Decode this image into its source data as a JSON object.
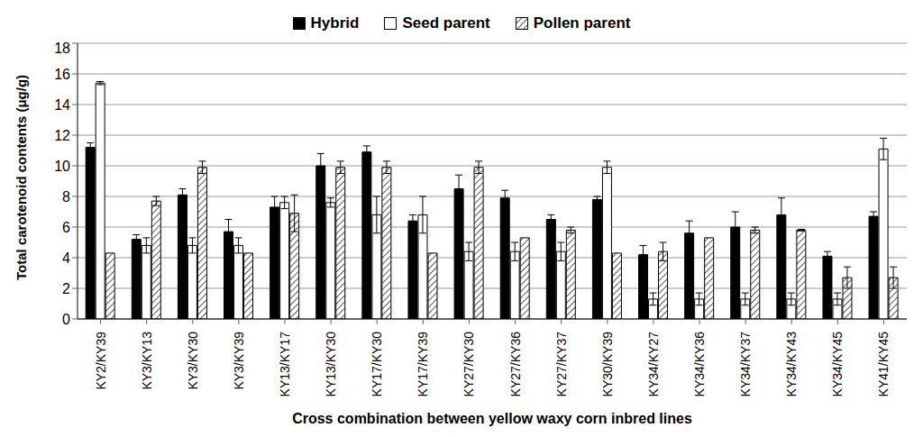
{
  "chart_data": {
    "type": "bar",
    "x_label": "Cross combination between yellow waxy corn inbred lines",
    "y_label": "Total carotenoid contents (μg/g)",
    "categories": [
      "KY2/KY39",
      "KY3/KY13",
      "KY3/KY30",
      "KY3/KY39",
      "KY13/KY17",
      "KY13/KY30",
      "KY17/KY30",
      "KY17/KY39",
      "KY27/KY30",
      "KY27/KY36",
      "KY27/KY37",
      "KY30/KY39",
      "KY34/KY27",
      "KY34/KY36",
      "KY34/KY37",
      "KY34/KY43",
      "KY34/KY45",
      "KY41/KY45"
    ],
    "series": [
      {
        "name": "Hybrid",
        "color": "#000000",
        "values": [
          11.2,
          5.2,
          8.1,
          5.7,
          7.3,
          10.0,
          10.9,
          6.4,
          8.5,
          7.9,
          6.5,
          7.8,
          4.2,
          5.6,
          6.0,
          6.8,
          4.1,
          6.7
        ],
        "errors": [
          0.3,
          0.3,
          0.4,
          0.8,
          0.7,
          0.8,
          0.4,
          0.4,
          0.9,
          0.5,
          0.3,
          0.2,
          0.6,
          0.8,
          1.0,
          1.1,
          0.3,
          0.3
        ]
      },
      {
        "name": "Seed parent",
        "color": "#ffffff",
        "values": [
          15.4,
          4.8,
          4.8,
          4.8,
          7.6,
          7.6,
          6.8,
          6.8,
          4.4,
          4.4,
          4.4,
          9.9,
          1.3,
          1.3,
          1.3,
          1.3,
          1.3,
          11.1
        ],
        "errors": [
          0.1,
          0.5,
          0.5,
          0.5,
          0.4,
          0.3,
          1.2,
          1.2,
          0.6,
          0.6,
          0.6,
          0.4,
          0.4,
          0.4,
          0.4,
          0.4,
          0.4,
          0.7
        ]
      },
      {
        "name": "Pollen parent",
        "color": "#595959",
        "values": [
          4.3,
          7.7,
          9.9,
          4.3,
          6.9,
          9.9,
          9.9,
          4.3,
          9.9,
          5.3,
          5.8,
          4.3,
          4.4,
          5.3,
          5.8,
          5.8,
          2.7,
          2.7
        ],
        "errors": [
          0,
          0.3,
          0.4,
          0,
          1.2,
          0.4,
          0.4,
          0,
          0.4,
          0,
          0.2,
          0,
          0.6,
          0,
          0.2,
          0.05,
          0.7,
          0.7
        ]
      }
    ],
    "ylim": [
      0,
      18
    ],
    "yticks": [
      0,
      2,
      4,
      6,
      8,
      10,
      12,
      14,
      16,
      18
    ],
    "grid": true,
    "legend": "top"
  }
}
